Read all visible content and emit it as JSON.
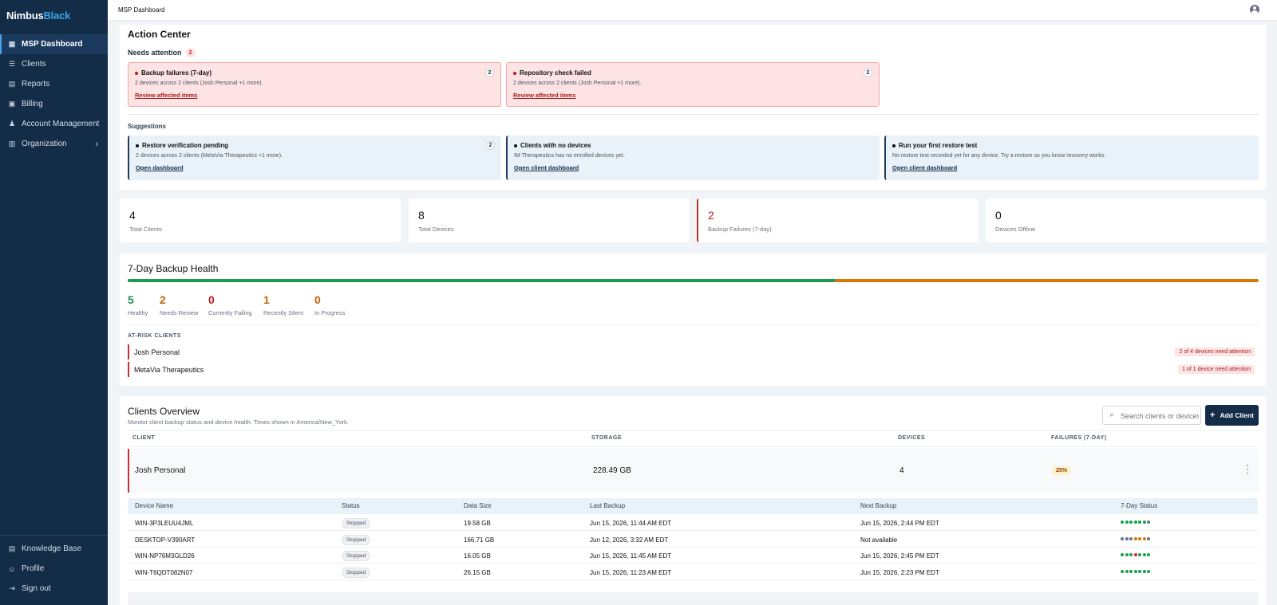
{
  "brand": {
    "part1": "Nimbus",
    "part2": "Black"
  },
  "sidebar": {
    "items": [
      {
        "label": "MSP Dashboard",
        "icon": "grid-icon"
      },
      {
        "label": "Clients",
        "icon": "sliders-icon"
      },
      {
        "label": "Reports",
        "icon": "report-icon"
      },
      {
        "label": "Billing",
        "icon": "billing-icon"
      },
      {
        "label": "Account Management",
        "icon": "users-icon"
      },
      {
        "label": "Organization",
        "icon": "building-icon"
      }
    ],
    "bottom": [
      {
        "label": "Knowledge Base",
        "icon": "book-icon"
      },
      {
        "label": "Profile",
        "icon": "user-icon"
      },
      {
        "label": "Sign out",
        "icon": "signout-icon"
      }
    ]
  },
  "topbar": {
    "title": "MSP Dashboard"
  },
  "action_center": {
    "title": "Action Center",
    "needs_label": "Needs attention",
    "needs_count": "2",
    "alerts": [
      {
        "title": "Backup failures (7-day)",
        "count": "2",
        "desc": "2 devices across 2 clients (Josh Personal +1 more).",
        "link": "Review affected items"
      },
      {
        "title": "Repository check failed",
        "count": "2",
        "desc": "2 devices across 2 clients (Josh Personal +1 more).",
        "link": "Review affected items"
      }
    ],
    "suggestions_label": "Suggestions",
    "suggestions": [
      {
        "title": "Restore verification pending",
        "count": "2",
        "desc": "2 devices across 2 clients (MetaVia Therapeutics +1 more).",
        "link": "Open dashboard"
      },
      {
        "title": "Clients with no devices",
        "desc": "IM Therapeutics has no enrolled devices yet.",
        "link": "Open client dashboard"
      },
      {
        "title": "Run your first restore test",
        "desc": "No restore test recorded yet for any device. Try a restore so you know recovery works.",
        "link": "Open client dashboard"
      }
    ]
  },
  "stats": [
    {
      "value": "4",
      "label": "Total Clients"
    },
    {
      "value": "8",
      "label": "Total Devices"
    },
    {
      "value": "2",
      "label": "Backup Failures (7-day)"
    },
    {
      "value": "0",
      "label": "Devices Offline"
    }
  ],
  "health": {
    "title": "7-Day Backup Health",
    "healthy_fraction": 0.625,
    "metrics": [
      {
        "value": "5",
        "label": "Healthy",
        "color": "#1e8a4c"
      },
      {
        "value": "2",
        "label": "Needs Review",
        "color": "#c2650f"
      },
      {
        "value": "0",
        "label": "Currently Failing",
        "color": "#b91c1c"
      },
      {
        "value": "1",
        "label": "Recently Silent",
        "color": "#c2650f"
      },
      {
        "value": "0",
        "label": "In Progress",
        "color": "#c2650f"
      }
    ],
    "at_risk_label": "AT-RISK CLIENTS",
    "at_risk": [
      {
        "name": "Josh Personal",
        "badge": "2 of 4 devices need attention"
      },
      {
        "name": "MetaVia Therapeutics",
        "badge": "1 of 1 device need attention"
      }
    ]
  },
  "overview": {
    "title": "Clients Overview",
    "subtitle": "Monitor client backup status and device health. Times shown in America/New_York.",
    "search_placeholder": "Search clients or devices",
    "add_label": "Add Client",
    "columns": [
      "CLIENT",
      "STORAGE",
      "DEVICES",
      "FAILURES (7-DAY)"
    ],
    "client": {
      "name": "Josh Personal",
      "storage": "228.49 GB",
      "devices": "4",
      "failures": "25%"
    },
    "device_columns": [
      "Device Name",
      "Status",
      "Data Size",
      "Last Backup",
      "Next Backup",
      "7-Day Status"
    ],
    "devices": [
      {
        "name": "WIN-3P3LEUU4JML",
        "status": "Stopped",
        "size": "19.58 GB",
        "last": "Jun 15, 2026, 11:44 AM EDT",
        "next": "Jun 15, 2026, 2:44 PM EDT",
        "dots": [
          "g",
          "g",
          "g",
          "g",
          "g",
          "g",
          "x"
        ]
      },
      {
        "name": "DESKTOP-V390ART",
        "status": "Stopped",
        "size": "166.71 GB",
        "last": "Jun 12, 2026, 3:32 AM EDT",
        "next": "Not available",
        "dots": [
          "x",
          "x",
          "x",
          "o",
          "o",
          "o",
          "x"
        ]
      },
      {
        "name": "WIN-NP76M3GLD26",
        "status": "Stopped",
        "size": "16.05 GB",
        "last": "Jun 15, 2026, 11:45 AM EDT",
        "next": "Jun 15, 2026, 2:45 PM EDT",
        "dots": [
          "g",
          "g",
          "g",
          "r",
          "g",
          "g",
          "g"
        ]
      },
      {
        "name": "WIN-T6QDT082N07",
        "status": "Stopped",
        "size": "26.15 GB",
        "last": "Jun 15, 2026, 11:23 AM EDT",
        "next": "Jun 15, 2026, 2:23 PM EDT",
        "dots": [
          "g",
          "g",
          "g",
          "g",
          "g",
          "g",
          "g"
        ]
      }
    ]
  },
  "dot_colors": {
    "g": "#16a34a",
    "o": "#d97706",
    "r": "#dc2626",
    "x": "#64748b"
  }
}
